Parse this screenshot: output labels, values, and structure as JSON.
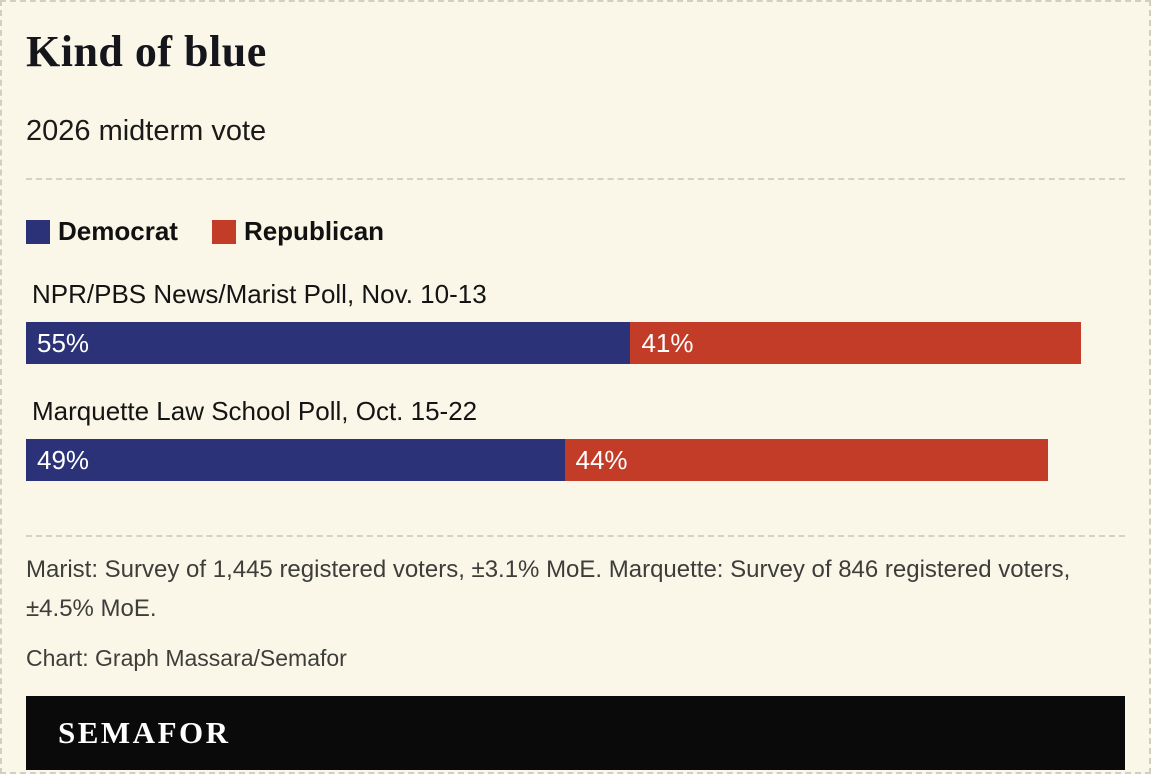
{
  "colors": {
    "background": "#fbf7e8",
    "democrat": "#2b3277",
    "republican": "#c23c27",
    "footer_bg": "#0a0a0a",
    "footer_text": "#ffffff"
  },
  "header": {
    "title": "Kind of blue",
    "subtitle": "2026 midterm vote"
  },
  "legend": {
    "democrat_label": "Democrat",
    "republican_label": "Republican"
  },
  "chart_data": {
    "type": "bar",
    "orientation": "horizontal-stacked",
    "title": "Kind of blue",
    "subtitle": "2026 midterm vote",
    "categories": [
      "NPR/PBS News/Marist Poll, Nov. 10-13",
      "Marquette Law School Poll, Oct. 15-22"
    ],
    "series": [
      {
        "name": "Democrat",
        "color": "#2b3277",
        "values": [
          55,
          49
        ]
      },
      {
        "name": "Republican",
        "color": "#c23c27",
        "values": [
          41,
          44
        ]
      }
    ],
    "value_suffix": "%",
    "xlim": [
      0,
      100
    ],
    "grid": false,
    "legend_position": "top-left"
  },
  "rows": {
    "0": {
      "label": "NPR/PBS News/Marist Poll, Nov. 10-13",
      "democrat_value": 55,
      "republican_value": 41,
      "democrat_label": "55%",
      "republican_label": "41%"
    },
    "1": {
      "label": "Marquette Law School Poll, Oct. 15-22",
      "democrat_value": 49,
      "republican_value": 44,
      "democrat_label": "49%",
      "republican_label": "44%"
    }
  },
  "footnotes": {
    "source": "Marist: Survey of 1,445 registered voters, ±3.1% MoE. Marquette: Survey of 846 registered voters, ±4.5% MoE.",
    "credit": "Chart: Graph Massara/Semafor"
  },
  "footer": {
    "brand": "SEMAFOR"
  }
}
